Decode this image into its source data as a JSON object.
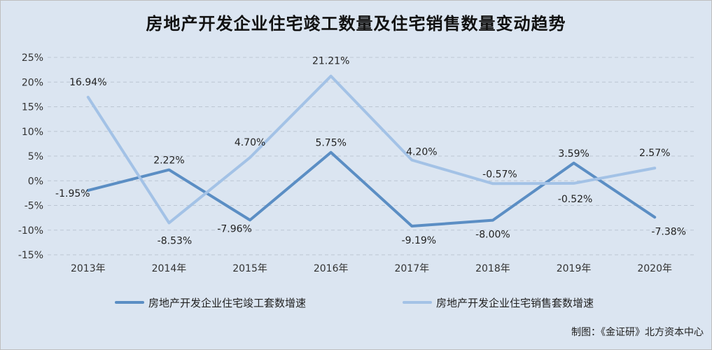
{
  "chart_data": {
    "type": "line",
    "title": "房地产开发企业住宅竣工数量及住宅销售数量变动趋势",
    "categories": [
      "2013年",
      "2014年",
      "2015年",
      "2016年",
      "2017年",
      "2018年",
      "2019年",
      "2020年"
    ],
    "series": [
      {
        "name": "房地产开发企业住宅竣工套数增速",
        "values": [
          -1.95,
          2.22,
          -7.96,
          5.75,
          -9.19,
          -8.0,
          3.59,
          -7.38
        ],
        "labels": [
          "-1.95%",
          "2.22%",
          "-7.96%",
          "5.75%",
          "-9.19%",
          "-8.00%",
          "3.59%",
          "-7.38%"
        ],
        "color": "#5b8ec4"
      },
      {
        "name": "房地产开发企业住宅销售套数增速",
        "values": [
          16.94,
          -8.53,
          4.7,
          21.21,
          4.2,
          -0.57,
          -0.52,
          2.57
        ],
        "labels": [
          "16.94%",
          "-8.53%",
          "4.70%",
          "21.21%",
          "4.20%",
          "-0.57%",
          "-0.52%",
          "2.57%"
        ],
        "color": "#a3c2e6"
      }
    ],
    "ylim": [
      -15,
      25
    ],
    "yticks": [
      25,
      20,
      15,
      10,
      5,
      0,
      -5,
      -10,
      -15
    ],
    "ytick_labels": [
      "25%",
      "20%",
      "15%",
      "10%",
      "5%",
      "0%",
      "-5%",
      "-10%",
      "-15%"
    ],
    "grid": true,
    "legend_position": "bottom"
  },
  "credit": "制图：《金证研》北方资本中心"
}
